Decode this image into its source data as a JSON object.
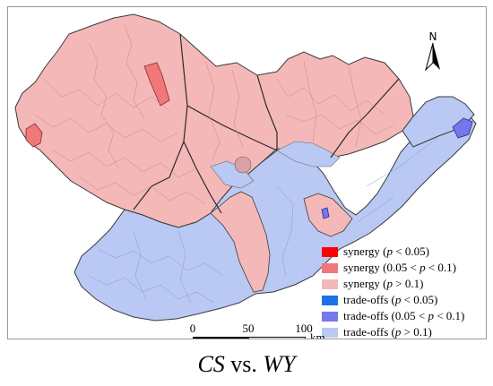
{
  "north_arrow": {
    "label": "N",
    "icon": "north-arrow-icon"
  },
  "legend": {
    "items": [
      {
        "key": "synergy_strong",
        "prefix": "synergy (",
        "p": "p",
        "suffix": " < 0.05)",
        "color": "#ff0000"
      },
      {
        "key": "synergy_moderate",
        "prefix": "synergy (0.05 < ",
        "p": "p",
        "suffix": " < 0.1)",
        "color": "#f07878"
      },
      {
        "key": "synergy_none",
        "prefix": "synergy (",
        "p": "p",
        "suffix": " > 0.1)",
        "color": "#f4b8b8"
      },
      {
        "key": "tradeoff_strong",
        "prefix": "trade-offs (",
        "p": "p",
        "suffix": " < 0.05)",
        "color": "#1f6fe8"
      },
      {
        "key": "tradeoff_moderate",
        "prefix": "trade-offs (0.05 < ",
        "p": "p",
        "suffix": " < 0.1)",
        "color": "#7578ec"
      },
      {
        "key": "tradeoff_none",
        "prefix": "trade-offs (",
        "p": "p",
        "suffix": " > 0.1)",
        "color": "#b9c9f4"
      }
    ]
  },
  "scalebar": {
    "ticks": [
      "0",
      "50",
      "100"
    ],
    "unit": "km"
  },
  "caption": {
    "left": "CS",
    "middle": " vs. ",
    "right": "WY"
  },
  "colors": {
    "synergy_area": "#f4b8b8",
    "tradeoff_area": "#b9c9f4",
    "synergy_moderate_area": "#f07878",
    "tradeoff_moderate_area": "#7578ec",
    "boundary": "#3a3a3a",
    "county_lines": "#b07070"
  }
}
